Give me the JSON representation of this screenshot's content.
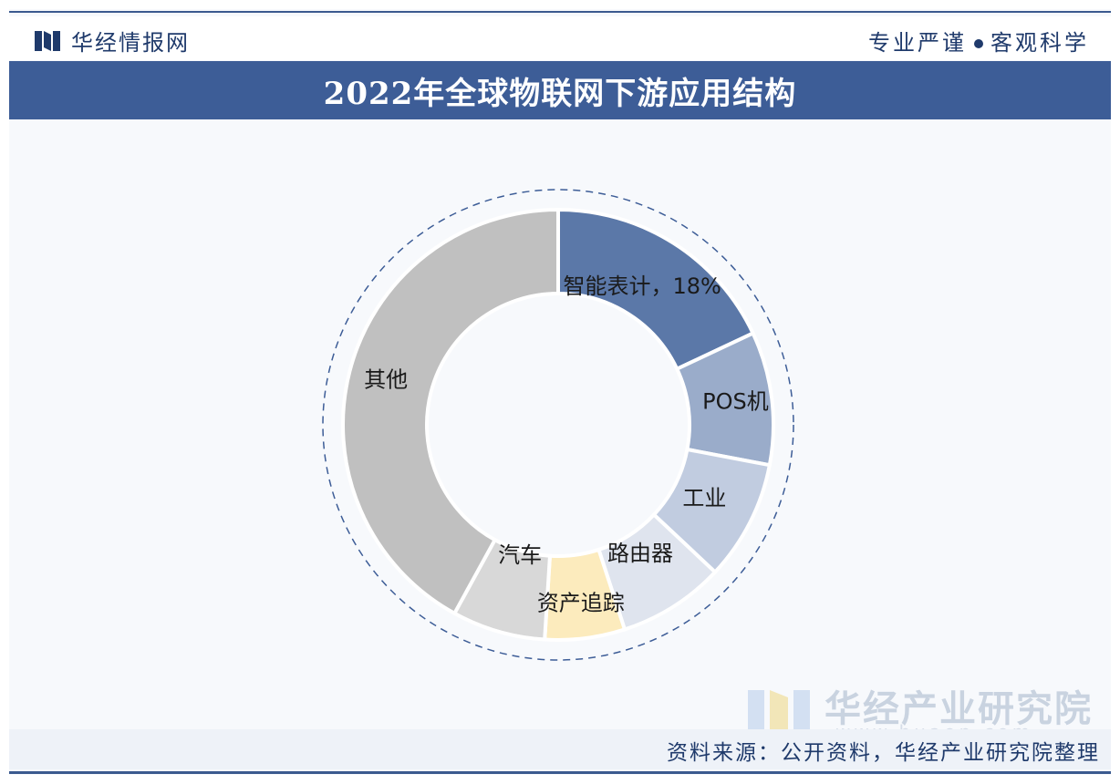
{
  "header": {
    "brand": "华经情报网",
    "slogan_left": "专业严谨",
    "slogan_right": "客观科学"
  },
  "chart_data": {
    "type": "pie",
    "title": "2022年全球物联网下游应用结构",
    "slices": [
      {
        "label": "智能表计，18%",
        "value": 18,
        "color": "#5b78a8"
      },
      {
        "label": "POS机",
        "value": 10,
        "color": "#9aacca"
      },
      {
        "label": "工业",
        "value": 9,
        "color": "#c1cce0"
      },
      {
        "label": "路由器",
        "value": 8,
        "color": "#dfe4ee"
      },
      {
        "label": "资产追踪",
        "value": 6,
        "color": "#fcebbd"
      },
      {
        "label": "汽车",
        "value": 7,
        "color": "#d8d8d8"
      },
      {
        "label": "其他",
        "value": 42,
        "color": "#c0c0c0"
      }
    ]
  },
  "watermark": {
    "name": "华经产业研究院",
    "url": "www.huaon.com"
  },
  "footer": {
    "source": "资料来源：公开资料，华经产业研究院整理"
  },
  "colors": {
    "title_bar": "#3d5d97",
    "text_dark": "#1f3a6b"
  }
}
